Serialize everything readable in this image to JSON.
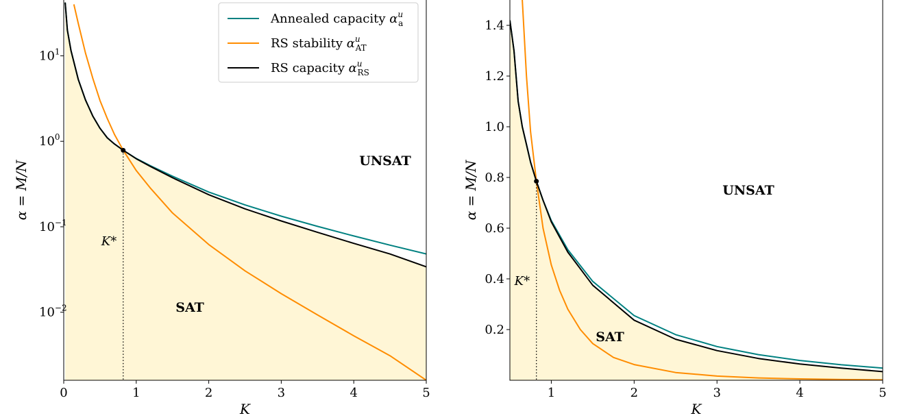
{
  "colors": {
    "annealed": "#008080",
    "at": "#ff8c00",
    "rs": "#000000",
    "sat_fill": "#fff6d6"
  },
  "chart_data": [
    {
      "type": "line",
      "yscale": "log",
      "xlim": [
        0,
        5
      ],
      "ylim": [
        0.0016,
        45
      ],
      "xlabel": "K",
      "ylabel": "α = M/N",
      "xticks": [
        "0",
        "1",
        "2",
        "3",
        "4",
        "5"
      ],
      "yticks": [
        {
          "base": "10",
          "exp": "−2",
          "value": 0.01
        },
        {
          "base": "10",
          "exp": "−1",
          "value": 0.1
        },
        {
          "base": "10",
          "exp": "0",
          "value": 1
        },
        {
          "base": "10",
          "exp": "1",
          "value": 10
        }
      ],
      "regions": {
        "sat": "SAT",
        "unsat": "UNSAT"
      },
      "critical_label": "K*",
      "critical_point": {
        "x": 0.82,
        "y": 0.785
      },
      "legend": {
        "placement": "top-right",
        "entries": [
          {
            "series": "annealed",
            "text": "Annealed capacity ",
            "math": "α",
            "sup": "u",
            "sub": "a"
          },
          {
            "series": "at",
            "text": "RS stability ",
            "math": "α",
            "sup": "u",
            "sub": "AT"
          },
          {
            "series": "rs",
            "text": "RS capacity ",
            "math": "α",
            "sup": "u",
            "sub": "RS"
          }
        ]
      },
      "series": [
        {
          "name": "Annealed capacity",
          "key": "annealed",
          "x": [
            0.02,
            0.05,
            0.1,
            0.2,
            0.3,
            0.4,
            0.5,
            0.6,
            0.7,
            0.82,
            1.0,
            1.2,
            1.5,
            2.0,
            2.5,
            3.0,
            3.5,
            4.0,
            4.5,
            5.0
          ],
          "y": [
            42,
            20,
            11.5,
            5.3,
            3.05,
            1.98,
            1.42,
            1.1,
            0.93,
            0.785,
            0.63,
            0.515,
            0.39,
            0.255,
            0.18,
            0.133,
            0.101,
            0.078,
            0.061,
            0.048
          ]
        },
        {
          "name": "RS stability",
          "key": "at",
          "x": [
            0.14,
            0.2,
            0.3,
            0.4,
            0.5,
            0.6,
            0.7,
            0.82,
            1.0,
            1.2,
            1.5,
            2.0,
            2.5,
            3.0,
            3.5,
            4.0,
            4.5,
            5.0
          ],
          "y": [
            40,
            24,
            10.8,
            5.5,
            3.0,
            1.85,
            1.2,
            0.785,
            0.455,
            0.28,
            0.145,
            0.062,
            0.0305,
            0.0165,
            0.0093,
            0.0053,
            0.0031,
            0.0016
          ]
        },
        {
          "name": "RS capacity",
          "key": "rs",
          "x": [
            0.02,
            0.05,
            0.1,
            0.2,
            0.3,
            0.4,
            0.5,
            0.6,
            0.7,
            0.82,
            1.0,
            1.2,
            1.5,
            2.0,
            2.5,
            3.0,
            3.5,
            4.0,
            4.5,
            5.0
          ],
          "y": [
            42,
            20,
            11.5,
            5.3,
            3.05,
            1.98,
            1.42,
            1.1,
            0.93,
            0.785,
            0.625,
            0.505,
            0.375,
            0.237,
            0.162,
            0.117,
            0.086,
            0.064,
            0.048,
            0.034
          ]
        }
      ]
    },
    {
      "type": "line",
      "yscale": "linear",
      "xlim": [
        0.5,
        5
      ],
      "ylim": [
        0,
        1.5
      ],
      "xlabel": "K",
      "ylabel": "α = M/N",
      "xticks": [
        "1",
        "2",
        "3",
        "4",
        "5"
      ],
      "yticks": [
        "0.2",
        "0.4",
        "0.6",
        "0.8",
        "1.0",
        "1.2",
        "1.4"
      ],
      "regions": {
        "sat": "SAT",
        "unsat": "UNSAT"
      },
      "critical_label": "K*",
      "critical_point": {
        "x": 0.82,
        "y": 0.785
      },
      "series": [
        {
          "name": "Annealed capacity",
          "key": "annealed",
          "x": [
            0.5,
            0.55,
            0.6,
            0.65,
            0.7,
            0.75,
            0.82,
            0.9,
            1.0,
            1.2,
            1.5,
            2.0,
            2.5,
            3.0,
            3.5,
            4.0,
            4.5,
            5.0
          ],
          "y": [
            1.42,
            1.3,
            1.1,
            1.0,
            0.93,
            0.86,
            0.785,
            0.71,
            0.63,
            0.515,
            0.39,
            0.255,
            0.18,
            0.133,
            0.101,
            0.078,
            0.061,
            0.048
          ]
        },
        {
          "name": "RS stability",
          "key": "at",
          "x": [
            0.6,
            0.65,
            0.7,
            0.75,
            0.82,
            0.9,
            1.0,
            1.1,
            1.2,
            1.35,
            1.5,
            1.75,
            2.0,
            2.5,
            3.0,
            3.5,
            4.0,
            4.5,
            5.0
          ],
          "y": [
            1.85,
            1.5,
            1.2,
            0.98,
            0.785,
            0.6,
            0.455,
            0.355,
            0.28,
            0.2,
            0.145,
            0.09,
            0.062,
            0.0305,
            0.0165,
            0.0093,
            0.0053,
            0.0031,
            0.0016
          ]
        },
        {
          "name": "RS capacity",
          "key": "rs",
          "x": [
            0.5,
            0.55,
            0.6,
            0.65,
            0.7,
            0.75,
            0.82,
            0.9,
            1.0,
            1.2,
            1.5,
            2.0,
            2.5,
            3.0,
            3.5,
            4.0,
            4.5,
            5.0
          ],
          "y": [
            1.42,
            1.3,
            1.1,
            1.0,
            0.93,
            0.86,
            0.785,
            0.71,
            0.625,
            0.505,
            0.375,
            0.237,
            0.162,
            0.117,
            0.086,
            0.064,
            0.048,
            0.034
          ]
        }
      ]
    }
  ]
}
